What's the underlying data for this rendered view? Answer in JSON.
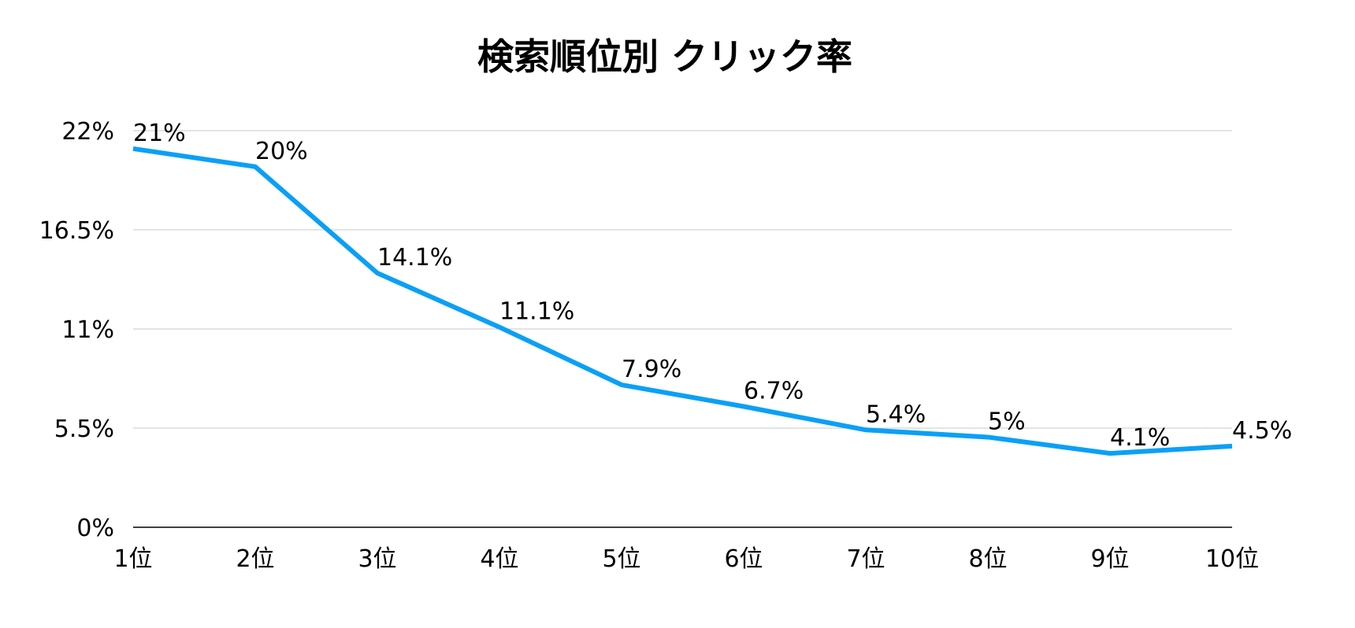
{
  "chart_data": {
    "type": "line",
    "title": "検索順位別 クリック率",
    "categories": [
      "1位",
      "2位",
      "3位",
      "4位",
      "5位",
      "6位",
      "7位",
      "8位",
      "9位",
      "10位"
    ],
    "values": [
      21,
      20,
      14.1,
      11.1,
      7.9,
      6.7,
      5.4,
      5,
      4.1,
      4.5
    ],
    "data_labels": [
      "21%",
      "20%",
      "14.1%",
      "11.1%",
      "7.9%",
      "6.7%",
      "5.4%",
      "5%",
      "4.1%",
      "4.5%"
    ],
    "yticks": [
      0,
      5.5,
      11,
      16.5,
      22
    ],
    "ytick_labels": [
      "0%",
      "5.5%",
      "11%",
      "16.5%",
      "22%"
    ],
    "ylim": [
      0,
      22
    ],
    "xlabel": "",
    "ylabel": "",
    "grid": true,
    "legend": "none",
    "line_color": "#0aa0f5",
    "grid_color": "#c8c8c8"
  }
}
